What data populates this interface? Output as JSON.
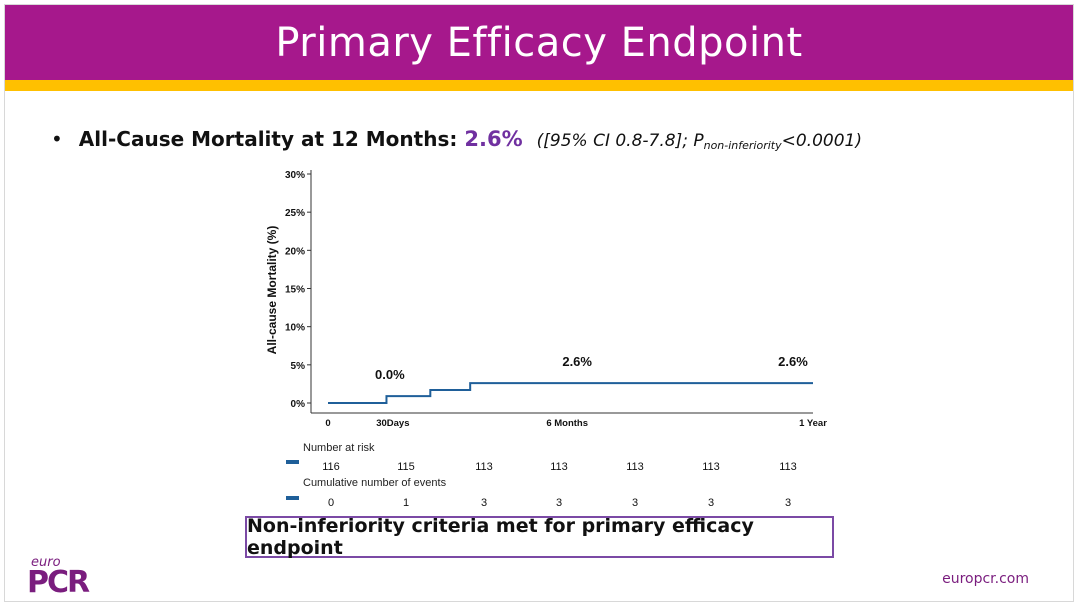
{
  "slide": {
    "title": "Primary Efficacy Endpoint",
    "bullet": {
      "dot": "•",
      "main": "All-Cause Mortality at 12 Months:",
      "value": "2.6%",
      "ci_text": "([95% CI 0.8-7.8]; P",
      "ci_sub": "non-inferiority",
      "ci_tail": "<0.0001)"
    },
    "callout": "Non-inferiority criteria met for primary efficacy endpoint",
    "logo_small": "euro",
    "logo_big": "PCR",
    "website": "europcr.com"
  },
  "colors": {
    "header": "#a6188c",
    "accent_bar": "#ffc000",
    "value_text": "#7030a0",
    "curve": "#1f5f99",
    "callout_border": "#7b4aa5",
    "brand": "#7a1d7e"
  },
  "chart_data": {
    "type": "line",
    "title": "",
    "ylabel": "All-cause Mortality (%)",
    "xlabel": "",
    "ylim": [
      0,
      30
    ],
    "yticks": [
      0,
      5,
      10,
      15,
      20,
      25,
      30
    ],
    "ytick_labels": [
      "0%",
      "5%",
      "10%",
      "15%",
      "20%",
      "25%",
      "30%"
    ],
    "xlim": [
      0,
      365
    ],
    "xticks": [
      0,
      30,
      180,
      365
    ],
    "xtick_labels": [
      "0",
      "30Days",
      "6 Months",
      "1 Year"
    ],
    "grid": false,
    "series": [
      {
        "x": [
          0,
          44,
          44,
          77,
          77,
          107,
          107,
          365
        ],
        "y": [
          0,
          0,
          0.9,
          0.9,
          1.7,
          1.7,
          2.6,
          2.6
        ]
      }
    ],
    "annotations": [
      {
        "x": 30,
        "y": 0.9,
        "text": "0.0%"
      },
      {
        "x": 180,
        "y": 2.6,
        "text": "2.6%"
      },
      {
        "x": 365,
        "y": 2.6,
        "text": "2.6%"
      }
    ],
    "risk_table": {
      "at_risk_label": "Number at risk",
      "at_risk": [
        "116",
        "115",
        "113",
        "113",
        "113",
        "113",
        "113"
      ],
      "events_label": "Cumulative number of events",
      "events": [
        "0",
        "1",
        "3",
        "3",
        "3",
        "3",
        "3"
      ]
    }
  }
}
